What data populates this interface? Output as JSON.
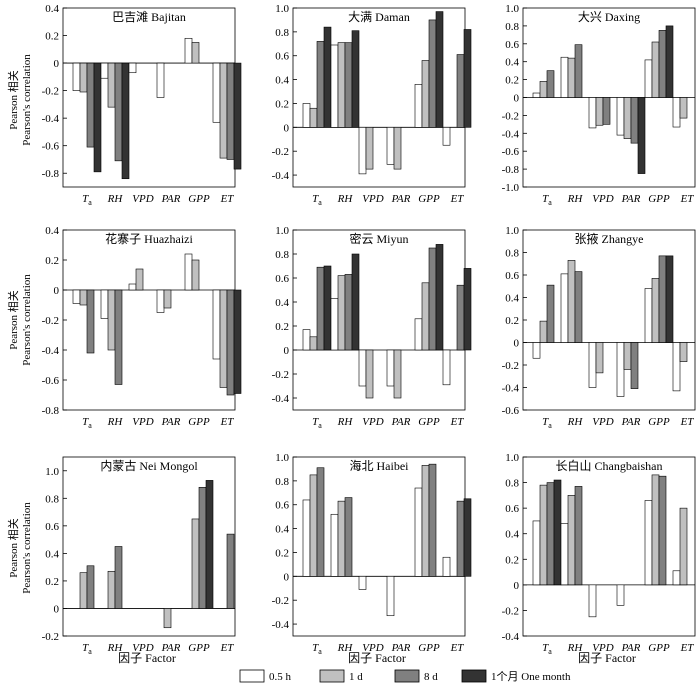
{
  "y_axis_label_line1": "Pearson 相关",
  "y_axis_label_line2": "Pearson's correlation",
  "x_axis_label": "因子  Factor",
  "legend": [
    {
      "label": "0.5 h",
      "color": "#ffffff"
    },
    {
      "label": "1 d",
      "color": "#c0c0c0"
    },
    {
      "label": "8 d",
      "color": "#808080"
    },
    {
      "label": "1个月 One month",
      "color": "#333333"
    }
  ],
  "chart_data": [
    {
      "type": "bar",
      "title": "巴吉滩 Bajitan",
      "categories": [
        "Ta",
        "RH",
        "VPD",
        "PAR",
        "GPP",
        "ET"
      ],
      "ylim": [
        -0.9,
        0.4
      ],
      "yticks": [
        0.4,
        0.2,
        0,
        -0.2,
        -0.4,
        -0.6,
        -0.8
      ],
      "series": [
        {
          "name": "0.5 h",
          "values": [
            -0.2,
            -0.11,
            -0.07,
            -0.25,
            0.18,
            -0.43
          ]
        },
        {
          "name": "1 d",
          "values": [
            -0.21,
            -0.32,
            null,
            null,
            0.15,
            -0.69
          ]
        },
        {
          "name": "8 d",
          "values": [
            -0.61,
            -0.71,
            null,
            null,
            null,
            -0.7
          ]
        },
        {
          "name": "1个月 One month",
          "values": [
            -0.79,
            -0.84,
            null,
            null,
            null,
            -0.77
          ]
        }
      ]
    },
    {
      "type": "bar",
      "title": "大满 Daman",
      "categories": [
        "Ta",
        "RH",
        "VPD",
        "PAR",
        "GPP",
        "ET"
      ],
      "ylim": [
        -0.5,
        1.0
      ],
      "yticks": [
        1.0,
        0.8,
        0.6,
        0.4,
        0.2,
        0,
        -0.2,
        -0.4
      ],
      "series": [
        {
          "name": "0.5 h",
          "values": [
            0.2,
            0.69,
            -0.39,
            -0.31,
            0.36,
            -0.15
          ]
        },
        {
          "name": "1 d",
          "values": [
            0.16,
            0.71,
            -0.35,
            -0.35,
            0.56,
            null
          ]
        },
        {
          "name": "8 d",
          "values": [
            0.72,
            0.71,
            null,
            null,
            0.9,
            0.61
          ]
        },
        {
          "name": "1个月 One month",
          "values": [
            0.84,
            0.81,
            null,
            null,
            0.97,
            0.82
          ]
        }
      ]
    },
    {
      "type": "bar",
      "title": "大兴 Daxing",
      "categories": [
        "Ta",
        "RH",
        "VPD",
        "PAR",
        "GPP",
        "ET"
      ],
      "ylim": [
        -1.0,
        1.0
      ],
      "yticks": [
        1.0,
        0.8,
        0.6,
        0.4,
        0.2,
        0,
        -0.2,
        -0.4,
        -0.6,
        -0.8,
        -1.0
      ],
      "series": [
        {
          "name": "0.5 h",
          "values": [
            0.05,
            0.45,
            -0.34,
            -0.42,
            0.42,
            -0.33
          ]
        },
        {
          "name": "1 d",
          "values": [
            0.18,
            0.44,
            -0.31,
            -0.46,
            0.62,
            -0.23
          ]
        },
        {
          "name": "8 d",
          "values": [
            0.3,
            0.59,
            -0.3,
            -0.51,
            0.75,
            null
          ]
        },
        {
          "name": "1个月 One month",
          "values": [
            null,
            null,
            null,
            -0.85,
            0.8,
            null
          ]
        }
      ]
    },
    {
      "type": "bar",
      "title": "花寨子 Huazhaizi",
      "categories": [
        "Ta",
        "RH",
        "VPD",
        "PAR",
        "GPP",
        "ET"
      ],
      "ylim": [
        -0.8,
        0.4
      ],
      "yticks": [
        0.4,
        0.2,
        0,
        -0.2,
        -0.4,
        -0.6,
        -0.8
      ],
      "series": [
        {
          "name": "0.5 h",
          "values": [
            -0.09,
            -0.19,
            0.04,
            -0.15,
            0.24,
            -0.46
          ]
        },
        {
          "name": "1 d",
          "values": [
            -0.1,
            -0.4,
            0.14,
            -0.12,
            0.2,
            -0.65
          ]
        },
        {
          "name": "8 d",
          "values": [
            -0.42,
            -0.63,
            null,
            null,
            null,
            -0.7
          ]
        },
        {
          "name": "1个月 One month",
          "values": [
            null,
            null,
            null,
            null,
            null,
            -0.69
          ]
        }
      ]
    },
    {
      "type": "bar",
      "title": "密云 Miyun",
      "categories": [
        "Ta",
        "RH",
        "VPD",
        "PAR",
        "GPP",
        "ET"
      ],
      "ylim": [
        -0.5,
        1.0
      ],
      "yticks": [
        1.0,
        0.8,
        0.6,
        0.4,
        0.2,
        0,
        -0.2,
        -0.4
      ],
      "series": [
        {
          "name": "0.5 h",
          "values": [
            0.17,
            0.43,
            -0.3,
            -0.3,
            0.26,
            -0.29
          ]
        },
        {
          "name": "1 d",
          "values": [
            0.11,
            0.62,
            -0.4,
            -0.4,
            0.56,
            null
          ]
        },
        {
          "name": "8 d",
          "values": [
            0.69,
            0.63,
            null,
            null,
            0.85,
            0.54
          ]
        },
        {
          "name": "1个月 One month",
          "values": [
            0.7,
            0.8,
            null,
            null,
            0.88,
            0.68
          ]
        }
      ]
    },
    {
      "type": "bar",
      "title": "张掖 Zhangye",
      "categories": [
        "Ta",
        "RH",
        "VPD",
        "PAR",
        "GPP",
        "ET"
      ],
      "ylim": [
        -0.6,
        1.0
      ],
      "yticks": [
        1.0,
        0.8,
        0.6,
        0.4,
        0.2,
        0,
        -0.2,
        -0.4,
        -0.6
      ],
      "series": [
        {
          "name": "0.5 h",
          "values": [
            -0.14,
            0.61,
            -0.4,
            -0.48,
            0.48,
            -0.43
          ]
        },
        {
          "name": "1 d",
          "values": [
            0.19,
            0.73,
            -0.27,
            -0.24,
            0.57,
            -0.17
          ]
        },
        {
          "name": "8 d",
          "values": [
            0.51,
            0.63,
            null,
            -0.41,
            0.77,
            null
          ]
        },
        {
          "name": "1个月 One month",
          "values": [
            null,
            null,
            null,
            null,
            0.77,
            null
          ]
        }
      ]
    },
    {
      "type": "bar",
      "title": "内蒙古 Nei Mongol",
      "categories": [
        "Ta",
        "RH",
        "VPD",
        "PAR",
        "GPP",
        "ET"
      ],
      "ylim": [
        -0.2,
        1.1
      ],
      "yticks": [
        1.0,
        0.8,
        0.6,
        0.4,
        0.2,
        0,
        -0.2
      ],
      "series": [
        {
          "name": "0.5 h",
          "values": [
            null,
            null,
            null,
            null,
            null,
            null
          ]
        },
        {
          "name": "1 d",
          "values": [
            0.26,
            0.27,
            null,
            -0.14,
            0.65,
            null
          ]
        },
        {
          "name": "8 d",
          "values": [
            0.31,
            0.45,
            null,
            null,
            0.88,
            0.54
          ]
        },
        {
          "name": "1个月 One month",
          "values": [
            null,
            null,
            null,
            null,
            0.93,
            null
          ]
        }
      ]
    },
    {
      "type": "bar",
      "title": "海北 Haibei",
      "categories": [
        "Ta",
        "RH",
        "VPD",
        "PAR",
        "GPP",
        "ET"
      ],
      "ylim": [
        -0.5,
        1.0
      ],
      "yticks": [
        1.0,
        0.8,
        0.6,
        0.4,
        0.2,
        0,
        -0.2,
        -0.4
      ],
      "series": [
        {
          "name": "0.5 h",
          "values": [
            0.64,
            0.52,
            -0.11,
            -0.33,
            0.74,
            0.16
          ]
        },
        {
          "name": "1 d",
          "values": [
            0.85,
            0.63,
            null,
            null,
            0.93,
            null
          ]
        },
        {
          "name": "8 d",
          "values": [
            0.91,
            0.66,
            null,
            null,
            0.94,
            0.63
          ]
        },
        {
          "name": "1个月 One month",
          "values": [
            null,
            null,
            null,
            null,
            null,
            0.65
          ]
        }
      ]
    },
    {
      "type": "bar",
      "title": "长白山 Changbaishan",
      "categories": [
        "Ta",
        "RH",
        "VPD",
        "PAR",
        "GPP",
        "ET"
      ],
      "ylim": [
        -0.4,
        1.0
      ],
      "yticks": [
        1.0,
        0.8,
        0.6,
        0.4,
        0.2,
        0,
        -0.2,
        -0.4
      ],
      "series": [
        {
          "name": "0.5 h",
          "values": [
            0.5,
            0.48,
            -0.25,
            -0.16,
            0.66,
            0.11
          ]
        },
        {
          "name": "1 d",
          "values": [
            0.78,
            0.7,
            null,
            null,
            0.86,
            0.6
          ]
        },
        {
          "name": "8 d",
          "values": [
            0.8,
            0.77,
            null,
            null,
            0.85,
            null
          ]
        },
        {
          "name": "1个月 One month",
          "values": [
            0.82,
            null,
            null,
            null,
            null,
            null
          ]
        }
      ]
    }
  ]
}
